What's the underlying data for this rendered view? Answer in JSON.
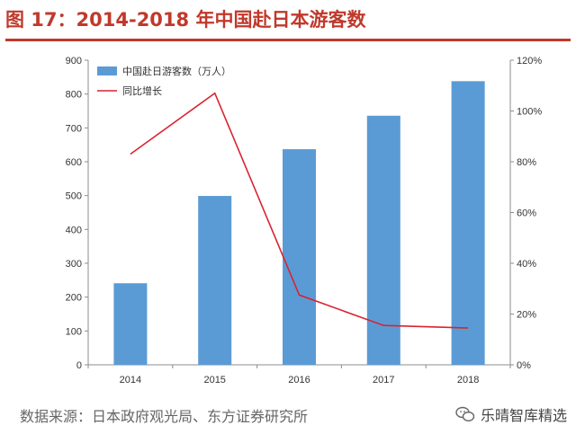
{
  "title": "图 17：2014-2018 年中国赴日本游客数",
  "source": "数据来源：日本政府观光局、东方证券研究所",
  "watermark": "乐晴智库精选",
  "colors": {
    "bar": "#5b9bd5",
    "line": "#d9242f",
    "title": "#c0392b"
  },
  "chart_data": {
    "type": "bar",
    "categories": [
      "2014",
      "2015",
      "2016",
      "2017",
      "2018"
    ],
    "series": [
      {
        "name": "中国赴日游客数（万人）",
        "type": "bar",
        "axis": "left",
        "values": [
          241,
          499,
          637,
          736,
          838
        ]
      },
      {
        "name": "同比增长",
        "type": "line",
        "axis": "right",
        "values": [
          83,
          107,
          27.5,
          15.5,
          14.5
        ]
      }
    ],
    "ylim": [
      0,
      900
    ],
    "yticks": [
      "0",
      "100",
      "200",
      "300",
      "400",
      "500",
      "600",
      "700",
      "800",
      "900"
    ],
    "y2lim": [
      0,
      120
    ],
    "y2ticks": [
      "0%",
      "20%",
      "40%",
      "60%",
      "80%",
      "100%",
      "120%"
    ],
    "legend_position": "top-left",
    "grid": false
  }
}
